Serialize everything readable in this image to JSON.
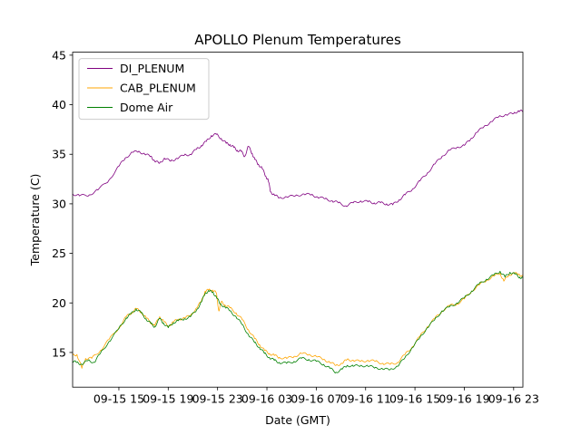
{
  "chart_data": {
    "type": "line",
    "title": "APOLLO Plenum Temperatures",
    "xlabel": "Date (GMT)",
    "ylabel": "Temperature (C)",
    "xlim": [
      11.25,
      47.75
    ],
    "ylim": [
      11.5,
      45.3
    ],
    "x_unit": "hours since 09-15 00:00 GMT",
    "x_ticks": [
      {
        "value": 15,
        "label": "09-15 15"
      },
      {
        "value": 19,
        "label": "09-15 19"
      },
      {
        "value": 23,
        "label": "09-15 23"
      },
      {
        "value": 27,
        "label": "09-16 03"
      },
      {
        "value": 31,
        "label": "09-16 07"
      },
      {
        "value": 35,
        "label": "09-16 11"
      },
      {
        "value": 39,
        "label": "09-16 15"
      },
      {
        "value": 43,
        "label": "09-16 19"
      },
      {
        "value": 47,
        "label": "09-16 23"
      }
    ],
    "y_ticks": [
      {
        "value": 15,
        "label": "15"
      },
      {
        "value": 20,
        "label": "20"
      },
      {
        "value": 25,
        "label": "25"
      },
      {
        "value": 30,
        "label": "30"
      },
      {
        "value": 35,
        "label": "35"
      },
      {
        "value": 40,
        "label": "40"
      },
      {
        "value": 45,
        "label": "45"
      }
    ],
    "legend_position": "top-left",
    "series": [
      {
        "name": "DI_PLENUM",
        "color": "#800080",
        "x": [
          11.25,
          11.8,
          12.6,
          13.3,
          14.2,
          15.0,
          15.5,
          16.1,
          16.6,
          17.1,
          17.6,
          17.9,
          18.3,
          18.7,
          19.2,
          19.7,
          20.3,
          20.8,
          21.3,
          21.7,
          22.1,
          22.5,
          22.9,
          23.3,
          23.7,
          24.0,
          24.3,
          24.6,
          24.9,
          25.2,
          25.5,
          25.8,
          26.0,
          26.3,
          26.6,
          26.9,
          27.1,
          27.3,
          27.6,
          28.0,
          28.6,
          29.3,
          30.0,
          30.6,
          31.1,
          31.7,
          32.3,
          32.8,
          33.4,
          34.0,
          34.6,
          35.2,
          35.7,
          36.2,
          36.7,
          37.2,
          37.7,
          38.2,
          38.8,
          39.4,
          40.0,
          40.6,
          41.2,
          41.8,
          42.4,
          43.0,
          43.5,
          44.0,
          44.6,
          45.2,
          45.8,
          46.4,
          47.0,
          47.4,
          47.75
        ],
        "y": [
          31.0,
          30.8,
          30.9,
          31.4,
          32.4,
          33.8,
          34.6,
          35.2,
          35.3,
          35.0,
          34.8,
          34.3,
          34.1,
          34.6,
          34.3,
          34.6,
          34.9,
          35.0,
          35.5,
          35.9,
          36.3,
          36.9,
          37.0,
          36.6,
          36.1,
          36.0,
          35.7,
          35.4,
          35.3,
          34.8,
          35.8,
          35.1,
          34.5,
          34.0,
          33.6,
          32.8,
          32.4,
          31.2,
          30.9,
          30.6,
          30.7,
          30.8,
          31.0,
          30.9,
          30.7,
          30.5,
          30.3,
          30.1,
          29.8,
          30.1,
          30.3,
          30.2,
          30.1,
          30.1,
          30.0,
          29.9,
          30.4,
          30.9,
          31.5,
          32.3,
          33.1,
          34.0,
          34.8,
          35.4,
          35.7,
          35.9,
          36.5,
          37.2,
          37.8,
          38.3,
          38.8,
          39.0,
          39.1,
          39.4,
          39.3
        ]
      },
      {
        "name": "CAB_PLENUM",
        "color": "#ffa500",
        "x": [
          11.25,
          11.6,
          12.0,
          12.3,
          12.8,
          13.5,
          14.2,
          15.0,
          15.6,
          16.0,
          16.4,
          16.8,
          17.2,
          17.6,
          17.9,
          18.3,
          18.6,
          19.0,
          19.4,
          19.8,
          20.3,
          20.8,
          21.3,
          21.7,
          22.0,
          22.3,
          22.6,
          22.9,
          23.1,
          23.3,
          23.6,
          24.0,
          24.5,
          25.0,
          25.5,
          26.0,
          26.4,
          26.8,
          27.2,
          27.6,
          28.0,
          28.6,
          29.2,
          29.8,
          30.4,
          31.0,
          31.6,
          32.1,
          32.6,
          33.1,
          33.5,
          34.0,
          34.6,
          35.2,
          35.8,
          36.4,
          37.0,
          37.6,
          38.2,
          38.8,
          39.4,
          40.0,
          40.6,
          41.2,
          41.8,
          42.4,
          43.0,
          43.6,
          44.2,
          44.8,
          45.4,
          45.9,
          46.2,
          46.6,
          47.0,
          47.4,
          47.75
        ],
        "y": [
          14.7,
          14.8,
          13.4,
          14.4,
          14.4,
          15.2,
          16.3,
          17.5,
          18.6,
          19.0,
          19.4,
          19.1,
          18.5,
          18.0,
          17.7,
          18.6,
          18.2,
          17.6,
          18.1,
          18.3,
          18.5,
          18.7,
          19.5,
          20.2,
          21.2,
          21.3,
          21.3,
          21.0,
          19.2,
          20.1,
          19.8,
          19.5,
          19.0,
          18.3,
          17.3,
          16.4,
          15.8,
          15.2,
          14.9,
          14.7,
          14.5,
          14.4,
          14.6,
          14.9,
          14.8,
          14.6,
          14.3,
          14.0,
          13.7,
          13.9,
          14.3,
          14.2,
          14.1,
          14.2,
          14.1,
          13.9,
          13.8,
          14.0,
          14.8,
          15.6,
          16.6,
          17.6,
          18.4,
          19.2,
          19.7,
          19.9,
          20.4,
          21.2,
          21.8,
          22.3,
          22.7,
          23.0,
          22.2,
          22.8,
          23.0,
          22.9,
          22.7
        ]
      },
      {
        "name": "Dome Air",
        "color": "#008000",
        "x": [
          11.25,
          11.6,
          12.0,
          12.5,
          13.0,
          13.5,
          14.2,
          15.0,
          15.6,
          16.0,
          16.4,
          16.8,
          17.2,
          17.6,
          17.9,
          18.3,
          18.6,
          19.0,
          19.4,
          19.8,
          20.3,
          20.8,
          21.3,
          21.7,
          22.0,
          22.3,
          22.6,
          22.9,
          23.2,
          23.6,
          24.0,
          24.5,
          25.0,
          25.5,
          26.0,
          26.4,
          26.8,
          27.2,
          27.6,
          28.0,
          28.6,
          29.2,
          29.8,
          30.4,
          31.0,
          31.6,
          32.1,
          32.6,
          33.1,
          33.5,
          34.0,
          34.6,
          35.2,
          35.8,
          36.4,
          37.0,
          37.6,
          38.2,
          38.8,
          39.4,
          40.0,
          40.6,
          41.2,
          41.8,
          42.4,
          43.0,
          43.6,
          44.2,
          44.8,
          45.4,
          45.9,
          46.3,
          46.7,
          47.1,
          47.5,
          47.75
        ],
        "y": [
          14.1,
          14.0,
          13.8,
          14.2,
          14.0,
          14.9,
          16.1,
          17.4,
          18.5,
          18.9,
          19.4,
          19.0,
          18.4,
          17.9,
          17.6,
          18.4,
          18.0,
          17.5,
          18.0,
          18.2,
          18.4,
          18.6,
          19.3,
          20.1,
          21.0,
          21.2,
          21.1,
          20.6,
          19.9,
          19.6,
          19.2,
          18.6,
          17.8,
          16.8,
          16.0,
          15.5,
          14.9,
          14.5,
          14.2,
          14.0,
          13.9,
          14.1,
          14.4,
          14.3,
          14.1,
          13.8,
          13.4,
          13.0,
          13.3,
          13.7,
          13.6,
          13.7,
          13.6,
          13.5,
          13.3,
          13.3,
          13.6,
          14.5,
          15.5,
          16.5,
          17.5,
          18.3,
          19.2,
          19.6,
          20.0,
          20.5,
          21.2,
          21.9,
          22.4,
          22.8,
          23.2,
          22.6,
          23.1,
          22.9,
          22.6,
          22.5
        ]
      }
    ]
  }
}
